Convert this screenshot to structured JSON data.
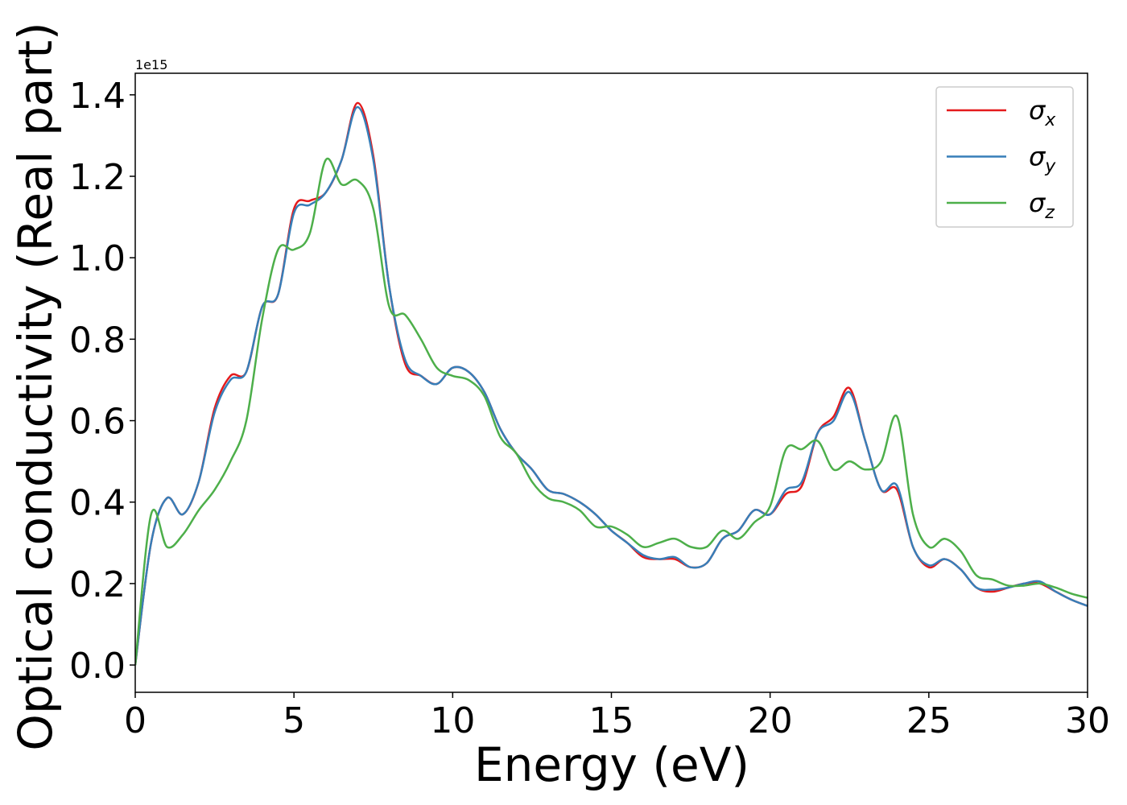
{
  "chart_data": {
    "type": "line",
    "xlabel": "Energy (eV)",
    "ylabel": "Optical conductivity (Real part)",
    "y_offset_label": "1e15",
    "x": [
      0,
      0.5,
      1,
      1.5,
      2,
      2.5,
      3,
      3.5,
      4,
      4.5,
      5,
      5.5,
      6,
      6.5,
      7,
      7.5,
      8,
      8.5,
      9,
      9.5,
      10,
      10.5,
      11,
      11.5,
      12,
      12.5,
      13,
      13.5,
      14,
      14.5,
      15,
      15.5,
      16,
      16.5,
      17,
      17.5,
      18,
      18.5,
      19,
      19.5,
      20,
      20.5,
      21,
      21.5,
      22,
      22.5,
      23,
      23.5,
      24,
      24.5,
      25,
      25.5,
      26,
      26.5,
      27,
      27.5,
      28,
      28.5,
      29,
      29.5,
      30
    ],
    "series": [
      {
        "name": "σx",
        "color": "#e41a1c",
        "values": [
          0,
          0.3,
          0.41,
          0.37,
          0.45,
          0.63,
          0.71,
          0.72,
          0.88,
          0.91,
          1.12,
          1.14,
          1.16,
          1.24,
          1.38,
          1.25,
          0.93,
          0.74,
          0.71,
          0.69,
          0.73,
          0.72,
          0.67,
          0.58,
          0.52,
          0.48,
          0.43,
          0.42,
          0.4,
          0.37,
          0.33,
          0.3,
          0.265,
          0.26,
          0.26,
          0.24,
          0.25,
          0.31,
          0.33,
          0.38,
          0.37,
          0.42,
          0.44,
          0.57,
          0.61,
          0.68,
          0.55,
          0.43,
          0.43,
          0.29,
          0.24,
          0.26,
          0.235,
          0.19,
          0.18,
          0.19,
          0.2,
          0.2,
          0.18,
          0.16,
          0.145
        ]
      },
      {
        "name": "σy",
        "color": "#377eb8",
        "values": [
          0,
          0.3,
          0.41,
          0.37,
          0.45,
          0.62,
          0.7,
          0.72,
          0.88,
          0.91,
          1.11,
          1.13,
          1.16,
          1.24,
          1.37,
          1.24,
          0.93,
          0.75,
          0.71,
          0.69,
          0.73,
          0.72,
          0.67,
          0.58,
          0.52,
          0.48,
          0.43,
          0.42,
          0.4,
          0.37,
          0.33,
          0.3,
          0.27,
          0.26,
          0.265,
          0.24,
          0.25,
          0.31,
          0.33,
          0.38,
          0.37,
          0.43,
          0.45,
          0.57,
          0.6,
          0.67,
          0.55,
          0.43,
          0.44,
          0.29,
          0.245,
          0.26,
          0.235,
          0.19,
          0.185,
          0.19,
          0.2,
          0.205,
          0.18,
          0.16,
          0.145
        ]
      },
      {
        "name": "σz",
        "color": "#4daf4a",
        "values": [
          0,
          0.37,
          0.29,
          0.32,
          0.38,
          0.43,
          0.5,
          0.6,
          0.85,
          1.02,
          1.02,
          1.06,
          1.24,
          1.18,
          1.19,
          1.12,
          0.88,
          0.86,
          0.8,
          0.73,
          0.71,
          0.7,
          0.66,
          0.56,
          0.52,
          0.45,
          0.41,
          0.4,
          0.38,
          0.34,
          0.34,
          0.32,
          0.29,
          0.3,
          0.31,
          0.29,
          0.29,
          0.33,
          0.31,
          0.35,
          0.39,
          0.53,
          0.53,
          0.55,
          0.48,
          0.5,
          0.48,
          0.5,
          0.61,
          0.37,
          0.29,
          0.31,
          0.28,
          0.22,
          0.21,
          0.195,
          0.195,
          0.2,
          0.19,
          0.175,
          0.165
        ]
      }
    ],
    "xlim": [
      0,
      30
    ],
    "xticks": [
      0,
      5,
      10,
      15,
      20,
      25,
      30
    ],
    "ylim": [
      -0.067,
      1.453
    ],
    "yticks": [
      {
        "value": 0,
        "label": "0.0"
      },
      0.2,
      0.4,
      0.6,
      0.8,
      {
        "value": 1,
        "label": "1.0"
      },
      1.2,
      1.4
    ],
    "legend": "upper right"
  }
}
